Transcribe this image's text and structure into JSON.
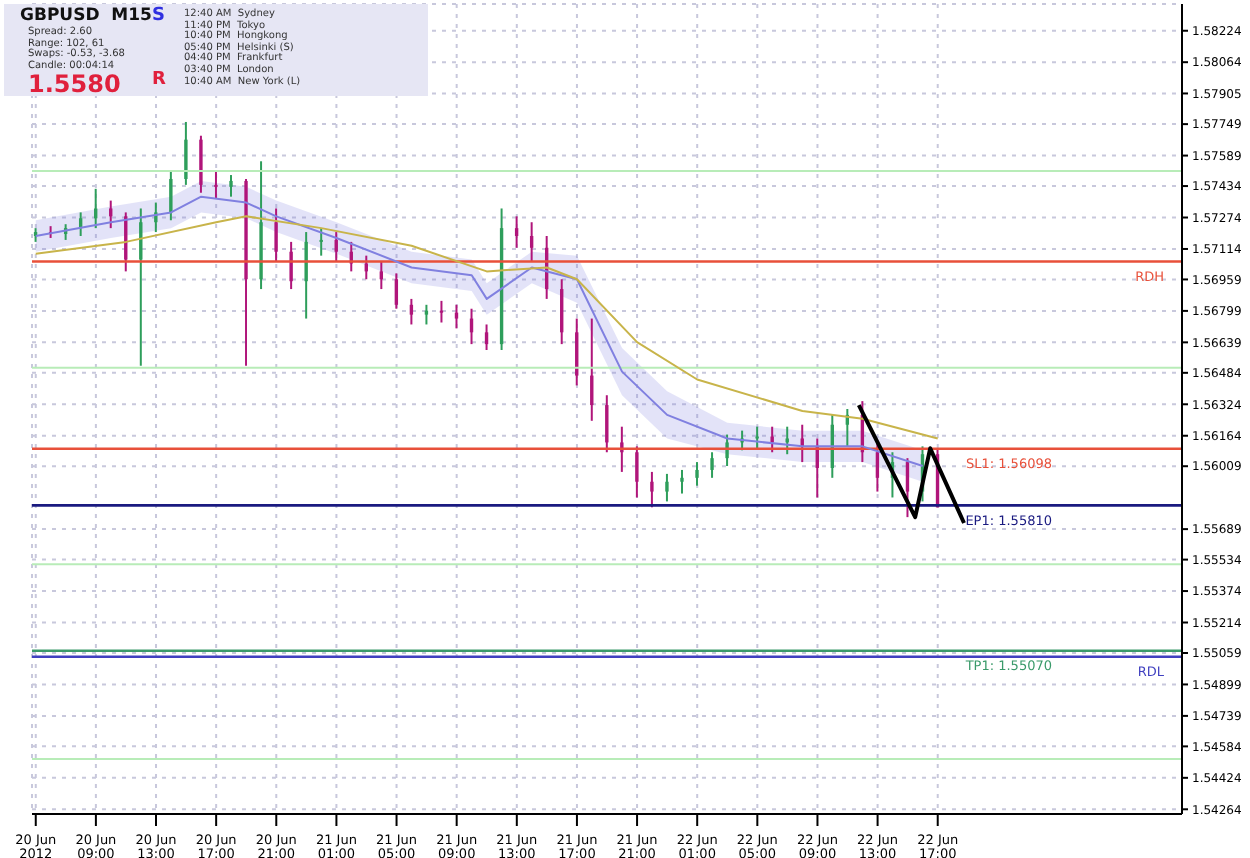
{
  "chart_data": {
    "type": "candlestick",
    "x": [
      "2012-06-20T05:00",
      "2012-06-20T06:00",
      "2012-06-20T07:00",
      "2012-06-20T08:00",
      "2012-06-20T09:00",
      "2012-06-20T10:00",
      "2012-06-20T11:00",
      "2012-06-20T12:00",
      "2012-06-20T13:00",
      "2012-06-20T14:00",
      "2012-06-20T15:00",
      "2012-06-20T16:00",
      "2012-06-20T17:00",
      "2012-06-20T18:00",
      "2012-06-20T19:00",
      "2012-06-20T20:00",
      "2012-06-20T21:00",
      "2012-06-20T22:00",
      "2012-06-20T23:00",
      "2012-06-21T00:00",
      "2012-06-21T01:00",
      "2012-06-21T02:00",
      "2012-06-21T03:00",
      "2012-06-21T04:00",
      "2012-06-21T05:00",
      "2012-06-21T06:00",
      "2012-06-21T07:00",
      "2012-06-21T08:00",
      "2012-06-21T09:00",
      "2012-06-21T10:00",
      "2012-06-21T11:00",
      "2012-06-21T12:00",
      "2012-06-21T13:00",
      "2012-06-21T14:00",
      "2012-06-21T15:00",
      "2012-06-21T16:00",
      "2012-06-21T17:00",
      "2012-06-21T18:00",
      "2012-06-21T19:00",
      "2012-06-21T20:00",
      "2012-06-21T21:00",
      "2012-06-21T22:00",
      "2012-06-21T23:00",
      "2012-06-22T00:00",
      "2012-06-22T01:00",
      "2012-06-22T02:00",
      "2012-06-22T03:00",
      "2012-06-22T04:00",
      "2012-06-22T05:00",
      "2012-06-22T06:00",
      "2012-06-22T07:00",
      "2012-06-22T08:00",
      "2012-06-22T09:00",
      "2012-06-22T10:00",
      "2012-06-22T11:00",
      "2012-06-22T12:00",
      "2012-06-22T13:00",
      "2012-06-22T14:00",
      "2012-06-22T15:00",
      "2012-06-22T16:00",
      "2012-06-22T17:00"
    ],
    "ohlc": [
      [
        1.5718,
        1.5722,
        1.5715,
        1.572
      ],
      [
        1.572,
        1.5723,
        1.5717,
        1.5719
      ],
      [
        1.5719,
        1.5724,
        1.5716,
        1.5722
      ],
      [
        1.5722,
        1.573,
        1.5718,
        1.5727
      ],
      [
        1.5727,
        1.5742,
        1.5722,
        1.5732
      ],
      [
        1.5732,
        1.5736,
        1.5722,
        1.5728
      ],
      [
        1.5728,
        1.573,
        1.57,
        1.5706
      ],
      [
        1.5706,
        1.5732,
        1.5652,
        1.5725
      ],
      [
        1.5725,
        1.5735,
        1.572,
        1.573
      ],
      [
        1.573,
        1.5751,
        1.5726,
        1.5747
      ],
      [
        1.5747,
        1.5776,
        1.5744,
        1.5767
      ],
      [
        1.5767,
        1.5769,
        1.574,
        1.5744
      ],
      [
        1.5744,
        1.5751,
        1.5737,
        1.5743
      ],
      [
        1.5743,
        1.5749,
        1.5738,
        1.5746
      ],
      [
        1.5746,
        1.5747,
        1.5652,
        1.5696
      ],
      [
        1.5696,
        1.5756,
        1.5691,
        1.5725
      ],
      [
        1.5725,
        1.5732,
        1.5705,
        1.571
      ],
      [
        1.571,
        1.5715,
        1.5691,
        1.5695
      ],
      [
        1.5695,
        1.572,
        1.5676,
        1.5715
      ],
      [
        1.5715,
        1.5722,
        1.5708,
        1.5716
      ],
      [
        1.5716,
        1.572,
        1.5705,
        1.571
      ],
      [
        1.571,
        1.5715,
        1.57,
        1.5704
      ],
      [
        1.5704,
        1.5708,
        1.5696,
        1.57
      ],
      [
        1.57,
        1.5705,
        1.5691,
        1.5696
      ],
      [
        1.5696,
        1.5699,
        1.5681,
        1.5683
      ],
      [
        1.5683,
        1.5686,
        1.5673,
        1.5678
      ],
      [
        1.5678,
        1.5683,
        1.5673,
        1.568
      ],
      [
        1.568,
        1.5685,
        1.5674,
        1.5679
      ],
      [
        1.5679,
        1.5683,
        1.5671,
        1.5676
      ],
      [
        1.5676,
        1.5681,
        1.5663,
        1.5669
      ],
      [
        1.5669,
        1.5673,
        1.566,
        1.5663
      ],
      [
        1.5663,
        1.5732,
        1.566,
        1.5722
      ],
      [
        1.5722,
        1.5728,
        1.5712,
        1.5718
      ],
      [
        1.5718,
        1.5725,
        1.5705,
        1.5712
      ],
      [
        1.5712,
        1.5718,
        1.5686,
        1.5691
      ],
      [
        1.5691,
        1.5696,
        1.5663,
        1.5669
      ],
      [
        1.5669,
        1.5676,
        1.5642,
        1.5647
      ],
      [
        1.5647,
        1.5676,
        1.5624,
        1.5632
      ],
      [
        1.5632,
        1.5637,
        1.5608,
        1.5613
      ],
      [
        1.5613,
        1.5621,
        1.5598,
        1.5608
      ],
      [
        1.5608,
        1.5611,
        1.5585,
        1.5593
      ],
      [
        1.5593,
        1.5598,
        1.558,
        1.5588
      ],
      [
        1.5588,
        1.5597,
        1.5583,
        1.5593
      ],
      [
        1.5593,
        1.5599,
        1.5587,
        1.5595
      ],
      [
        1.5595,
        1.5603,
        1.5591,
        1.5599
      ],
      [
        1.5599,
        1.5608,
        1.5595,
        1.5605
      ],
      [
        1.5605,
        1.5617,
        1.5601,
        1.5613
      ],
      [
        1.5613,
        1.5619,
        1.5609,
        1.5615
      ],
      [
        1.5615,
        1.5621,
        1.561,
        1.5616
      ],
      [
        1.5616,
        1.5621,
        1.5608,
        1.5613
      ],
      [
        1.5613,
        1.5621,
        1.5607,
        1.5615
      ],
      [
        1.5615,
        1.5622,
        1.5603,
        1.5611
      ],
      [
        1.5611,
        1.5615,
        1.5585,
        1.56
      ],
      [
        1.56,
        1.5627,
        1.5595,
        1.5622
      ],
      [
        1.5622,
        1.563,
        1.5611,
        1.5627
      ],
      [
        1.5627,
        1.5634,
        1.5603,
        1.5608
      ],
      [
        1.5608,
        1.5613,
        1.5588,
        1.5595
      ],
      [
        1.5595,
        1.5608,
        1.5585,
        1.5603
      ],
      [
        1.5603,
        1.5605,
        1.5575,
        1.5588
      ],
      [
        1.5588,
        1.5611,
        1.5583,
        1.5607
      ],
      [
        1.5607,
        1.561,
        1.558,
        1.558
      ]
    ],
    "colors": [
      "#2e9e5b",
      "#b0157a",
      "#2e9e5b",
      "#2e9e5b",
      "#2e9e5b",
      "#b0157a",
      "#b0157a",
      "#2e9e5b",
      "#2e9e5b",
      "#2e9e5b",
      "#2e9e5b",
      "#b0157a",
      "#b0157a",
      "#2e9e5b",
      "#b0157a",
      "#2e9e5b",
      "#b0157a",
      "#b0157a",
      "#2e9e5b",
      "#2e9e5b",
      "#b0157a",
      "#b0157a",
      "#b0157a",
      "#b0157a",
      "#b0157a",
      "#b0157a",
      "#2e9e5b",
      "#b0157a",
      "#b0157a",
      "#b0157a",
      "#b0157a",
      "#2e9e5b",
      "#b0157a",
      "#b0157a",
      "#b0157a",
      "#b0157a",
      "#b0157a",
      "#b0157a",
      "#b0157a",
      "#b0157a",
      "#b0157a",
      "#b0157a",
      "#2e9e5b",
      "#2e9e5b",
      "#2e9e5b",
      "#2e9e5b",
      "#2e9e5b",
      "#2e9e5b",
      "#2e9e5b",
      "#b0157a",
      "#2e9e5b",
      "#b0157a",
      "#b0157a",
      "#2e9e5b",
      "#2e9e5b",
      "#b0157a",
      "#b0157a",
      "#2e9e5b",
      "#b0157a",
      "#2e9e5b",
      "#b0157a"
    ],
    "series": [
      {
        "type": "line",
        "color": "#8080e0",
        "x": [
          "2012-06-20T05:00",
          "2012-06-20T10:00",
          "2012-06-20T14:00",
          "2012-06-20T16:00",
          "2012-06-20T19:00",
          "2012-06-20T21:00",
          "2012-06-21T01:00",
          "2012-06-21T06:00",
          "2012-06-21T10:00",
          "2012-06-21T11:00",
          "2012-06-21T14:00",
          "2012-06-21T17:00",
          "2012-06-21T20:00",
          "2012-06-21T23:00",
          "2012-06-22T03:00",
          "2012-06-22T08:00",
          "2012-06-22T12:00",
          "2012-06-22T16:00"
        ],
        "values": [
          1.5718,
          1.5725,
          1.573,
          1.5738,
          1.5735,
          1.5728,
          1.5717,
          1.5702,
          1.5698,
          1.5686,
          1.5702,
          1.5696,
          1.5649,
          1.5627,
          1.5615,
          1.5611,
          1.5611,
          1.5601
        ],
        "lower": [
          1.571,
          1.5717,
          1.5722,
          1.573,
          1.5727,
          1.572,
          1.5709,
          1.5694,
          1.569,
          1.5678,
          1.5694,
          1.5684,
          1.5637,
          1.5615,
          1.5607,
          1.5603,
          1.5603,
          1.5593
        ],
        "upper": [
          1.5726,
          1.5733,
          1.5738,
          1.5746,
          1.5743,
          1.5736,
          1.5725,
          1.571,
          1.5706,
          1.5694,
          1.571,
          1.5708,
          1.5661,
          1.5639,
          1.5623,
          1.5619,
          1.5619,
          1.5609
        ]
      },
      {
        "type": "line",
        "color": "#c8b44a",
        "x": [
          "2012-06-20T05:00",
          "2012-06-20T11:00",
          "2012-06-20T17:00",
          "2012-06-20T19:00",
          "2012-06-21T00:00",
          "2012-06-21T06:00",
          "2012-06-21T11:00",
          "2012-06-21T15:00",
          "2012-06-21T17:00",
          "2012-06-21T21:00",
          "2012-06-22T01:00",
          "2012-06-22T08:00",
          "2012-06-22T12:00",
          "2012-06-22T17:00"
        ],
        "values": [
          1.5709,
          1.5715,
          1.5725,
          1.5728,
          1.5722,
          1.5713,
          1.57,
          1.5702,
          1.5696,
          1.5664,
          1.5645,
          1.5629,
          1.5625,
          1.5615
        ]
      },
      {
        "type": "line",
        "color": "#000000",
        "x": [
          "2012-06-22T11:45",
          "2012-06-22T15:30",
          "2012-06-22T16:30",
          "2012-06-22T18:45"
        ],
        "values": [
          1.5632,
          1.5575,
          1.561,
          1.5572
        ]
      }
    ],
    "marker": "none",
    "ref_lines": [
      {
        "axis": "y",
        "value": 1.5751,
        "label": null,
        "color": "#b8ecb8"
      },
      {
        "axis": "y",
        "value": 1.5651,
        "label": null,
        "color": "#b8ecb8"
      },
      {
        "axis": "y",
        "value": 1.5551,
        "label": null,
        "color": "#b8ecb8"
      },
      {
        "axis": "y",
        "value": 1.5452,
        "label": null,
        "color": "#b8ecb8"
      },
      {
        "axis": "y",
        "value": 1.5705,
        "label": "RDH",
        "color": "#e8503a"
      },
      {
        "axis": "y",
        "value": 1.5504,
        "label": "RDL",
        "color": "#4040c0"
      },
      {
        "axis": "y",
        "value": 1.56098,
        "label": "SL1: 1.56098",
        "color": "#e8503a"
      },
      {
        "axis": "y",
        "value": 1.5581,
        "label": "EP1: 1.55810",
        "color": "#1a1a80"
      },
      {
        "axis": "y",
        "value": 1.5507,
        "label": "TP1: 1.55070",
        "color": "#3a9a6a"
      }
    ],
    "xlim": [
      "2012-06-20T04:45",
      "2012-06-23T09:15"
    ],
    "xticks": [
      {
        "value": "2012-06-20T05:00",
        "label": "20 Jun 2012"
      },
      {
        "value": "2012-06-20T09:00",
        "label": "20 Jun 09:00"
      },
      {
        "value": "2012-06-20T13:00",
        "label": "20 Jun 13:00"
      },
      {
        "value": "2012-06-20T17:00",
        "label": "20 Jun 17:00"
      },
      {
        "value": "2012-06-20T21:00",
        "label": "20 Jun 21:00"
      },
      {
        "value": "2012-06-21T01:00",
        "label": "21 Jun 01:00"
      },
      {
        "value": "2012-06-21T05:00",
        "label": "21 Jun 05:00"
      },
      {
        "value": "2012-06-21T09:00",
        "label": "21 Jun 09:00"
      },
      {
        "value": "2012-06-21T13:00",
        "label": "21 Jun 13:00"
      },
      {
        "value": "2012-06-21T17:00",
        "label": "21 Jun 17:00"
      },
      {
        "value": "2012-06-21T21:00",
        "label": "21 Jun 21:00"
      },
      {
        "value": "2012-06-22T01:00",
        "label": "22 Jun 01:00"
      },
      {
        "value": "2012-06-22T05:00",
        "label": "22 Jun 05:00"
      },
      {
        "value": "2012-06-22T09:00",
        "label": "22 Jun 09:00"
      },
      {
        "value": "2012-06-22T13:00",
        "label": "22 Jun 13:00"
      },
      {
        "value": "2012-06-22T17:00",
        "label": "22 Jun 17:00"
      }
    ],
    "ylim": [
      1.5424,
      1.5836
    ],
    "yticks": [
      1.58224,
      1.58064,
      1.57905,
      1.57749,
      1.57589,
      1.57434,
      1.57274,
      1.57114,
      1.56959,
      1.56799,
      1.56639,
      1.56484,
      1.56324,
      1.56164,
      1.56009,
      1.55689,
      1.55534,
      1.55374,
      1.55214,
      1.55059,
      1.54899,
      1.54739,
      1.54584,
      1.54424,
      1.54264
    ],
    "grid": true,
    "annotations": [
      "GBPUSD  M15",
      "Spread: 2.60",
      "Range: 102, 61",
      "Swaps: -0.53, -3.68",
      "Candle: 00:04:14",
      "1.5580",
      "S",
      "R",
      "12:40 AM  Sydney",
      "11:40 PM  Tokyo",
      "10:40 PM  Hongkong",
      "05:40 PM  Helsinki (S)",
      "04:40 PM  Frankfurt",
      "03:40 PM  London",
      "10:40 AM  New York (L)"
    ]
  }
}
